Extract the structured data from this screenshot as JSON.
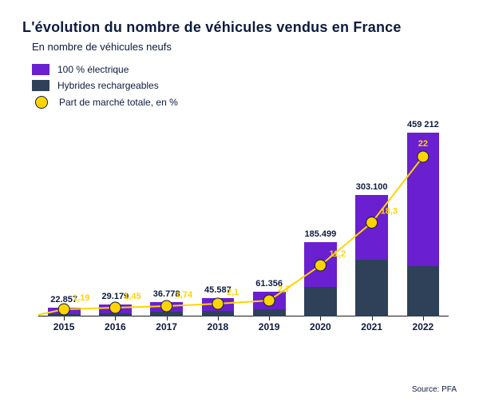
{
  "title": "L'évolution du nombre de véhicules vendus en France",
  "subtitle": "En nombre de véhicules neufs",
  "source_label": "Source: PFA",
  "colors": {
    "text_primary": "#0d1b3e",
    "electric": "#6a1fd0",
    "hybrid": "#2f4159",
    "marker_fill": "#ffd400",
    "line": "#ffd400",
    "axis": "#1a1a1a",
    "marker_label": "#ffd400"
  },
  "legend": {
    "electric": "100 % électrique",
    "hybrid": "Hybrides rechargeables",
    "share": "Part de marché totale, en %"
  },
  "chart": {
    "type": "stacked-bar-with-line",
    "y_max": 500000,
    "categories": [
      "2015",
      "2016",
      "2017",
      "2018",
      "2019",
      "2020",
      "2021",
      "2022"
    ],
    "totals": [
      22857,
      29179,
      36778,
      45587,
      61356,
      185499,
      303100,
      459212
    ],
    "total_labels": [
      "22.857",
      "29.179",
      "36.778",
      "45.587",
      "61.356",
      "185.499",
      "303.100",
      "459 212"
    ],
    "hybrid": [
      5500,
      7300,
      11900,
      14500,
      18600,
      74600,
      141400,
      126500
    ],
    "electric": [
      17357,
      21879,
      24878,
      31087,
      42756,
      110899,
      161700,
      332712
    ],
    "share_pct": [
      1.19,
      1.45,
      1.74,
      2.1,
      2.7,
      11.2,
      18.3,
      22
    ],
    "share_labels": [
      "1,19",
      "1,45",
      "1,74",
      "2,1",
      "2,7",
      "11,2",
      "18,3",
      "22"
    ],
    "share_y_for_marker": [
      18000,
      22000,
      26000,
      32000,
      40000,
      128000,
      235000,
      400000
    ],
    "marker_radius": 7,
    "line_width": 2,
    "bar_width_ratio": 0.78
  }
}
